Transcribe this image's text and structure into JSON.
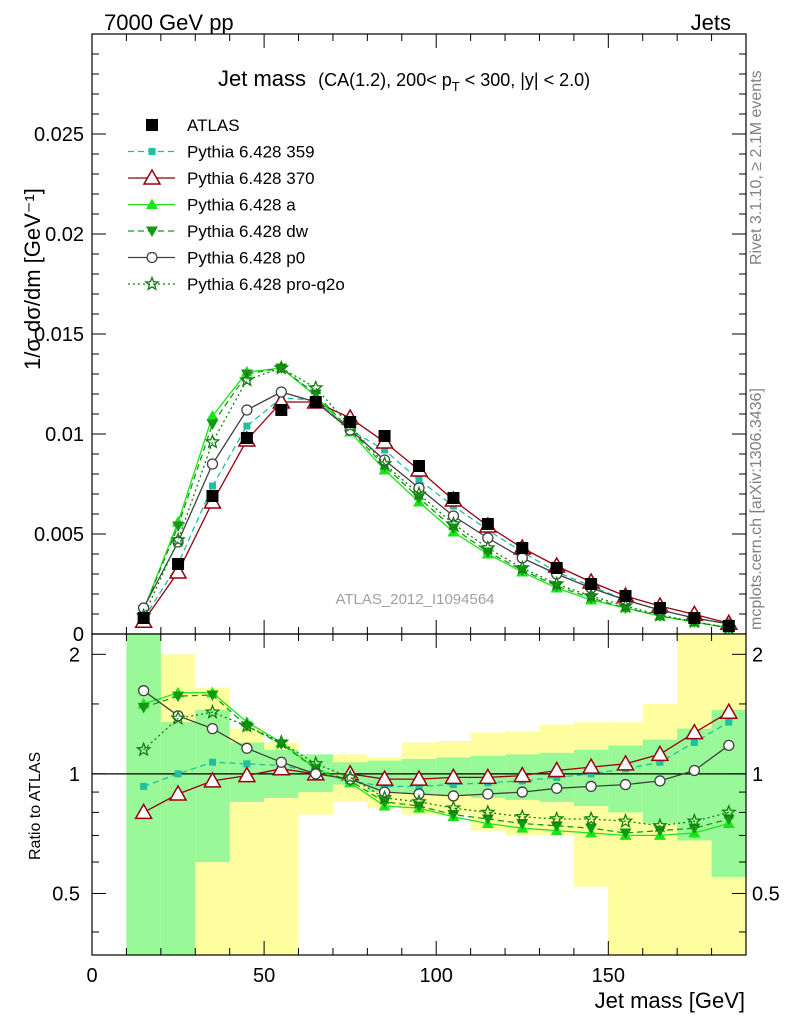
{
  "header": {
    "left": "7000 GeV pp",
    "right": "Jets",
    "title_main": "Jet mass",
    "title_sub": "(CA(1.2), 200< p",
    "title_sub_T": "T",
    "title_sub_rest": " < 300, |y| < 2.0)"
  },
  "side_text": {
    "rivet": "Rivet 3.1.10, ≥ 2.1M events",
    "mcplots": "mcplots.cern.ch [arXiv:1306.3436]"
  },
  "watermark": "ATLAS_2012_I1094564",
  "colors": {
    "band_inner": "#99f999",
    "band_outer": "#ffff9f",
    "ATLAS": "#000000",
    "p359": "#1fbf9f",
    "p370": "#99000f",
    "pa": "#19e619",
    "pdw": "#129b12",
    "pp0": "#404040",
    "pq2o": "#0f7f0f"
  },
  "chart_data": [
    {
      "type": "line",
      "panel": "main",
      "ylabel": "1/σ dσ/dm [GeV⁻¹]",
      "xlim": [
        0,
        190
      ],
      "ylim": [
        0,
        0.03
      ],
      "yticks": [
        "0",
        "0.005",
        "0.01",
        "0.015",
        "0.02",
        "0.025"
      ],
      "x": [
        15,
        25,
        35,
        45,
        55,
        65,
        75,
        85,
        95,
        105,
        115,
        125,
        135,
        145,
        155,
        165,
        175,
        185
      ],
      "series": [
        {
          "name": "ATLAS",
          "values": [
            0.0008,
            0.0035,
            0.0069,
            0.0098,
            0.0112,
            0.0116,
            0.0106,
            0.0099,
            0.0084,
            0.0068,
            0.0055,
            0.0043,
            0.0033,
            0.0025,
            0.0019,
            0.0013,
            0.0008,
            0.0004
          ]
        },
        {
          "name": "Pythia 6.428 359",
          "values": [
            0.00075,
            0.0035,
            0.0074,
            0.0104,
            0.0118,
            0.0117,
            0.0102,
            0.0092,
            0.0077,
            0.0064,
            0.0052,
            0.0041,
            0.0031,
            0.0024,
            0.0017,
            0.0012,
            0.0008,
            0.0005
          ]
        },
        {
          "name": "Pythia 6.428 370",
          "values": [
            0.00064,
            0.0031,
            0.0066,
            0.0097,
            0.0116,
            0.0116,
            0.0108,
            0.0096,
            0.0082,
            0.0067,
            0.0054,
            0.0043,
            0.0034,
            0.0026,
            0.0019,
            0.0014,
            0.00098,
            0.00054
          ]
        },
        {
          "name": "Pythia 6.428 a",
          "values": [
            0.0012,
            0.0056,
            0.0109,
            0.0131,
            0.0133,
            0.0119,
            0.0101,
            0.0082,
            0.0066,
            0.0051,
            0.004,
            0.0031,
            0.0023,
            0.0017,
            0.0013,
            0.0009,
            0.0006,
            0.0003
          ]
        },
        {
          "name": "Pythia 6.428 dw",
          "values": [
            0.0012,
            0.0054,
            0.0105,
            0.013,
            0.0133,
            0.012,
            0.0102,
            0.0084,
            0.0068,
            0.0053,
            0.0041,
            0.0032,
            0.0024,
            0.0018,
            0.0013,
            0.0009,
            0.0006,
            0.0003
          ]
        },
        {
          "name": "Pythia 6.428 p0",
          "values": [
            0.0013,
            0.0046,
            0.0085,
            0.0112,
            0.0121,
            0.0116,
            0.0102,
            0.0087,
            0.0073,
            0.0059,
            0.0048,
            0.0038,
            0.003,
            0.0023,
            0.0017,
            0.0012,
            0.0008,
            0.0005
          ]
        },
        {
          "name": "Pythia 6.428 pro-q2o",
          "values": [
            0.0009,
            0.0047,
            0.0096,
            0.0127,
            0.0133,
            0.0123,
            0.0104,
            0.0085,
            0.007,
            0.0055,
            0.0043,
            0.0033,
            0.0025,
            0.0019,
            0.0014,
            0.00095,
            0.00062,
            0.00031
          ]
        }
      ]
    },
    {
      "type": "line",
      "panel": "ratio",
      "xlabel": "Jet mass [GeV]",
      "ylabel": "Ratio to ATLAS",
      "xlim": [
        0,
        190
      ],
      "ylim": [
        0.35,
        2.25
      ],
      "xticks": [
        "0",
        "50",
        "100",
        "150"
      ],
      "yticks": [
        "0.5",
        "1",
        "2"
      ],
      "bins": [
        [
          10,
          20
        ],
        [
          20,
          30
        ],
        [
          30,
          40
        ],
        [
          40,
          50
        ],
        [
          50,
          60
        ],
        [
          60,
          70
        ],
        [
          70,
          80
        ],
        [
          80,
          90
        ],
        [
          90,
          100
        ],
        [
          100,
          110
        ],
        [
          110,
          120
        ],
        [
          120,
          130
        ],
        [
          130,
          140
        ],
        [
          140,
          150
        ],
        [
          150,
          160
        ],
        [
          160,
          170
        ],
        [
          170,
          180
        ],
        [
          180,
          190
        ]
      ],
      "band_inner": [
        [
          0.35,
          2.25
        ],
        [
          0.35,
          1.35
        ],
        [
          0.6,
          1.45
        ],
        [
          0.85,
          1.2
        ],
        [
          0.87,
          1.15
        ],
        [
          0.9,
          1.12
        ],
        [
          0.94,
          1.07
        ],
        [
          0.9,
          1.08
        ],
        [
          0.89,
          1.09
        ],
        [
          0.88,
          1.1
        ],
        [
          0.87,
          1.11
        ],
        [
          0.86,
          1.12
        ],
        [
          0.85,
          1.13
        ],
        [
          0.83,
          1.15
        ],
        [
          0.8,
          1.18
        ],
        [
          0.75,
          1.22
        ],
        [
          0.68,
          1.3
        ],
        [
          0.55,
          1.45
        ]
      ],
      "band_outer": [
        [
          0.35,
          2.25
        ],
        [
          0.35,
          2.0
        ],
        [
          0.35,
          1.65
        ],
        [
          0.35,
          1.3
        ],
        [
          0.35,
          1.2
        ],
        [
          0.79,
          1.12
        ],
        [
          0.85,
          1.12
        ],
        [
          0.82,
          1.1
        ],
        [
          0.79,
          1.2
        ],
        [
          0.79,
          1.21
        ],
        [
          0.72,
          1.27
        ],
        [
          0.7,
          1.28
        ],
        [
          0.7,
          1.33
        ],
        [
          0.52,
          1.35
        ],
        [
          0.35,
          1.35
        ],
        [
          0.35,
          1.5
        ],
        [
          0.35,
          2.25
        ],
        [
          0.35,
          2.25
        ]
      ],
      "x": [
        15,
        25,
        35,
        45,
        55,
        65,
        75,
        85,
        95,
        105,
        115,
        125,
        135,
        145,
        155,
        165,
        175,
        185
      ],
      "series": [
        {
          "name": "Pythia 6.428 359",
          "values": [
            0.93,
            1.0,
            1.07,
            1.06,
            1.05,
            1.01,
            0.96,
            0.93,
            0.93,
            0.94,
            0.95,
            0.96,
            0.98,
            1.0,
            1.03,
            1.07,
            1.2,
            1.35
          ]
        },
        {
          "name": "Pythia 6.428 370",
          "values": [
            0.8,
            0.89,
            0.96,
            0.99,
            1.03,
            1.0,
            1.0,
            0.97,
            0.97,
            0.98,
            0.98,
            0.99,
            1.02,
            1.04,
            1.06,
            1.12,
            1.27,
            1.43
          ]
        },
        {
          "name": "Pythia 6.428 a",
          "values": [
            1.5,
            1.6,
            1.6,
            1.35,
            1.2,
            1.03,
            0.95,
            0.83,
            0.82,
            0.78,
            0.75,
            0.73,
            0.72,
            0.71,
            0.7,
            0.7,
            0.71,
            0.75
          ]
        },
        {
          "name": "Pythia 6.428 dw",
          "values": [
            1.47,
            1.57,
            1.58,
            1.32,
            1.19,
            1.03,
            0.96,
            0.85,
            0.83,
            0.79,
            0.77,
            0.75,
            0.74,
            0.73,
            0.71,
            0.72,
            0.73,
            0.77
          ]
        },
        {
          "name": "Pythia 6.428 p0",
          "values": [
            1.62,
            1.4,
            1.3,
            1.16,
            1.07,
            1.0,
            0.97,
            0.9,
            0.89,
            0.88,
            0.89,
            0.9,
            0.92,
            0.93,
            0.94,
            0.96,
            1.02,
            1.18
          ]
        },
        {
          "name": "Pythia 6.428 pro-q2o",
          "values": [
            1.15,
            1.38,
            1.43,
            1.32,
            1.2,
            1.06,
            0.98,
            0.87,
            0.85,
            0.82,
            0.8,
            0.78,
            0.77,
            0.77,
            0.76,
            0.74,
            0.76,
            0.8
          ]
        }
      ]
    }
  ]
}
